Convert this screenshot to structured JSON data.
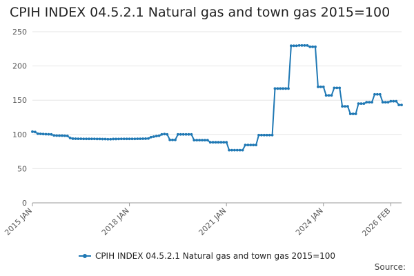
{
  "title": "CPIH INDEX 04.5.2.1 Natural gas and town gas 2015=100",
  "source_label": "Source:",
  "colors": {
    "series": "#1f78b4",
    "grid": "#e6e6e6",
    "axis": "#999999"
  },
  "chart_data": {
    "type": "line",
    "title": "CPIH INDEX 04.5.2.1 Natural gas and town gas 2015=100",
    "xlabel": "",
    "ylabel": "",
    "ylim": [
      0,
      250
    ],
    "yticks": [
      0,
      50,
      100,
      150,
      200,
      250
    ],
    "x_start": "2015 JAN",
    "x_tick_labels": [
      {
        "label": "2015 JAN",
        "index": 0
      },
      {
        "label": "2018 JAN",
        "index": 36
      },
      {
        "label": "2021 JAN",
        "index": 72
      },
      {
        "label": "2024 JAN",
        "index": 108
      },
      {
        "label": "2026 FEB",
        "index": 133
      }
    ],
    "grid": true,
    "legend_position": "bottom",
    "series": [
      {
        "name": "CPIH INDEX 04.5.2.1 Natural gas and town gas 2015=100",
        "values": [
          104,
          103.5,
          101,
          100.8,
          100.5,
          100.3,
          100.2,
          100,
          98.5,
          98.3,
          98.2,
          98.2,
          98,
          97.8,
          94.8,
          93.8,
          93.7,
          93.6,
          93.6,
          93.5,
          93.5,
          93.5,
          93.5,
          93.5,
          93.4,
          93.4,
          93.2,
          93.2,
          93,
          93,
          93.3,
          93.3,
          93.4,
          93.5,
          93.5,
          93.5,
          93.5,
          93.5,
          93.5,
          93.6,
          93.6,
          93.7,
          93.8,
          94,
          96,
          96.8,
          97.5,
          98,
          100,
          100.5,
          100,
          92,
          92,
          92,
          100,
          100,
          100,
          100,
          100,
          100,
          91.6,
          91.6,
          91.6,
          91.6,
          91.6,
          91.6,
          88.5,
          88.5,
          88.5,
          88.5,
          88.5,
          88.5,
          88.5,
          77,
          77,
          77,
          77,
          77,
          77,
          84.5,
          84.5,
          84.5,
          84.5,
          84.5,
          99,
          99,
          99,
          99,
          99,
          99,
          167,
          167,
          167,
          167,
          167,
          167,
          229.5,
          229.5,
          229.5,
          230,
          230,
          230,
          230,
          228,
          228,
          228,
          169.5,
          169.5,
          169.5,
          157,
          157,
          157,
          168,
          168,
          168,
          141,
          141,
          141,
          130,
          130,
          130,
          145,
          145,
          145,
          147,
          147,
          147,
          158.5,
          158.5,
          158.5,
          147,
          147,
          147,
          148.5,
          148.5,
          148.5,
          143,
          143
        ]
      }
    ]
  }
}
